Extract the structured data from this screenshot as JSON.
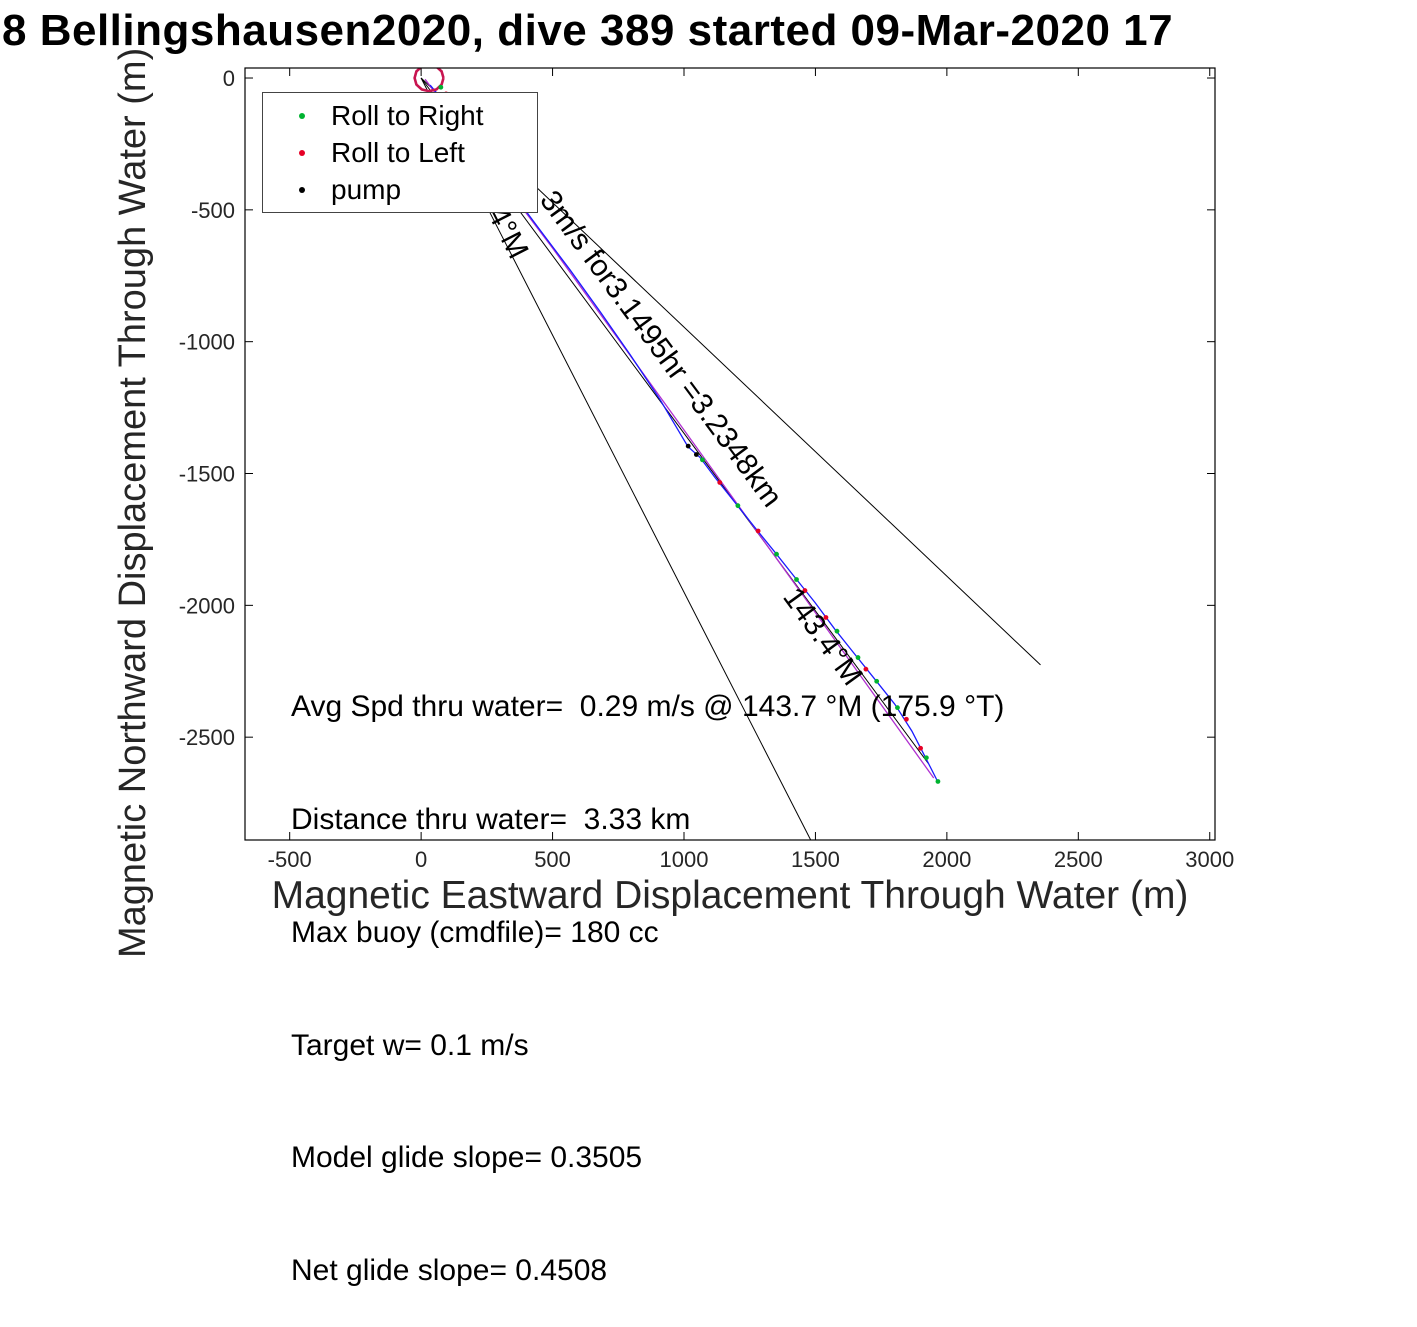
{
  "title": "8 Bellingshausen2020, dive 389 started 09-Mar-2020 17",
  "axes": {
    "xlabel": "Magnetic Eastward Displacement Through Water (m)",
    "ylabel": "Magnetic Northward Displacement Through Water (m)"
  },
  "legend": {
    "items": [
      {
        "label": "Roll to Right",
        "color": "#00b330",
        "icon": "green-dot"
      },
      {
        "label": "Roll to Left",
        "color": "#e60026",
        "icon": "red-dot"
      },
      {
        "label": "pump",
        "color": "#000000",
        "icon": "black-dot"
      }
    ]
  },
  "info": {
    "lines": [
      "Avg Spd thru water=  0.29 m/s @ 143.7 °M (175.9 °T)",
      "Distance thru water=  3.33 km",
      "Max buoy (cmdfile)= 180 cc",
      "Target w= 0.1 m/s",
      "Model glide slope= 0.3505",
      "Net glide slope= 0.4508"
    ]
  },
  "chart_data": {
    "type": "line",
    "title": "8 Bellingshausen2020, dive 389 started 09-Mar-2020 17",
    "xlabel": "Magnetic Eastward Displacement Through Water (m)",
    "ylabel": "Magnetic Northward Displacement Through Water (m)",
    "xlim": [
      -670,
      3020
    ],
    "ylim": [
      -2890,
      38
    ],
    "xticks": [
      -500,
      0,
      500,
      1000,
      1500,
      2000,
      2500,
      3000
    ],
    "yticks": [
      0,
      -500,
      -1000,
      -1500,
      -2000,
      -2500
    ],
    "grid": false,
    "legend_position": "top-left-inside",
    "legend": [
      "Roll to Right",
      "Roll to Left",
      "pump"
    ],
    "annotations": [
      {
        "text": "3m/s for3.1495hr =3.2348km",
        "x": 448,
        "y": -463,
        "angle": 53.5
      },
      {
        "text": "4°M",
        "x": 251,
        "y": -512,
        "angle": 63
      },
      {
        "text": "143.4°M",
        "x": 1373,
        "y": -1968,
        "angle": 54
      }
    ],
    "series": [
      {
        "name": "bearing-fan-left",
        "type": "line",
        "color": "#000000",
        "width": 1,
        "points": [
          [
            0,
            0
          ],
          [
            1482,
            -2890
          ]
        ]
      },
      {
        "name": "bearing-fan-mid",
        "type": "line",
        "color": "#000000",
        "width": 1,
        "points": [
          [
            0,
            0
          ],
          [
            1929,
            -2599
          ]
        ]
      },
      {
        "name": "bearing-fan-right",
        "type": "line",
        "color": "#000000",
        "width": 1,
        "points": [
          [
            0,
            0
          ],
          [
            2356,
            -2226
          ]
        ]
      },
      {
        "name": "model-track-line",
        "type": "line",
        "color": "#b030d0",
        "width": 1.3,
        "points": [
          [
            15,
            -5
          ],
          [
            500,
            -645
          ],
          [
            1000,
            -1335
          ],
          [
            1440,
            -1945
          ],
          [
            1950,
            -2655
          ]
        ]
      },
      {
        "name": "dive-track-line",
        "type": "line",
        "color": "#1a1aff",
        "width": 1.3,
        "points": [
          [
            34,
            -27
          ],
          [
            129,
            -140
          ],
          [
            224,
            -273
          ],
          [
            338,
            -424
          ],
          [
            452,
            -576
          ],
          [
            566,
            -727
          ],
          [
            681,
            -886
          ],
          [
            795,
            -1049
          ],
          [
            909,
            -1220
          ],
          [
            1015,
            -1398
          ],
          [
            1061,
            -1439
          ],
          [
            1118,
            -1515
          ],
          [
            1194,
            -1610
          ],
          [
            1270,
            -1705
          ],
          [
            1346,
            -1799
          ],
          [
            1422,
            -1894
          ],
          [
            1498,
            -1989
          ],
          [
            1574,
            -2091
          ],
          [
            1650,
            -2186
          ],
          [
            1726,
            -2280
          ],
          [
            1802,
            -2375
          ],
          [
            1867,
            -2477
          ],
          [
            1916,
            -2572
          ],
          [
            1966,
            -2670
          ]
        ]
      },
      {
        "name": "surface-loop",
        "type": "line",
        "color": "#c81450",
        "width": 2.6,
        "points": [
          [
            85,
            0
          ],
          [
            78,
            25
          ],
          [
            58,
            43
          ],
          [
            30,
            50
          ],
          [
            2,
            43
          ],
          [
            -18,
            25
          ],
          [
            -25,
            0
          ],
          [
            -18,
            -25
          ],
          [
            2,
            -43
          ],
          [
            30,
            -50
          ],
          [
            58,
            -43
          ],
          [
            78,
            -25
          ],
          [
            85,
            0
          ]
        ]
      },
      {
        "name": "roll-right-markers",
        "type": "scatter",
        "color": "#00b330",
        "size": 2.4,
        "points": [
          [
            75,
            -35
          ],
          [
            1070,
            -1448
          ],
          [
            1205,
            -1622
          ],
          [
            1352,
            -1806
          ],
          [
            1428,
            -1902
          ],
          [
            1582,
            -2098
          ],
          [
            1662,
            -2198
          ],
          [
            1733,
            -2288
          ],
          [
            1812,
            -2388
          ],
          [
            1922,
            -2578
          ],
          [
            1966,
            -2668
          ]
        ]
      },
      {
        "name": "roll-left-markers",
        "type": "scatter",
        "color": "#e60026",
        "size": 2.4,
        "points": [
          [
            95,
            -60
          ],
          [
            52,
            -80
          ],
          [
            1136,
            -1534
          ],
          [
            1282,
            -1718
          ],
          [
            1460,
            -1944
          ],
          [
            1540,
            -2046
          ],
          [
            1692,
            -2242
          ],
          [
            1846,
            -2432
          ],
          [
            1900,
            -2542
          ]
        ]
      },
      {
        "name": "pump-markers",
        "type": "scatter",
        "color": "#000000",
        "size": 2.4,
        "points": [
          [
            1016,
            -1396
          ],
          [
            1047,
            -1428
          ]
        ]
      }
    ]
  }
}
